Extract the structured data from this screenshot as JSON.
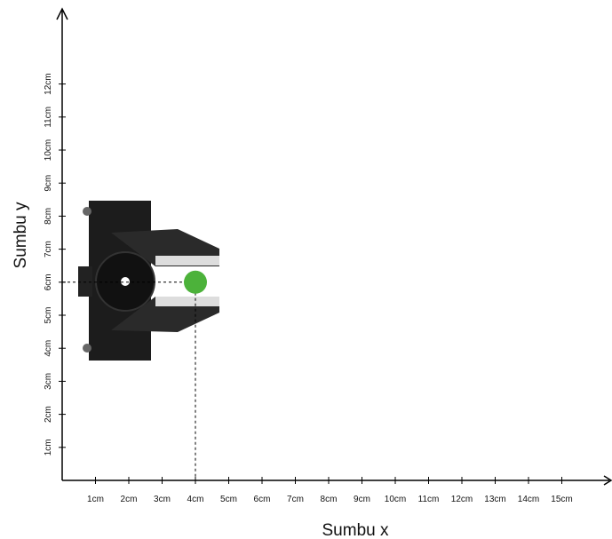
{
  "x_axis": {
    "label": "Sumbu x",
    "ticks": [
      "1cm",
      "2cm",
      "3cm",
      "4cm",
      "5cm",
      "6cm",
      "7cm",
      "8cm",
      "9cm",
      "10cm",
      "11cm",
      "12cm",
      "13cm",
      "14cm",
      "15cm"
    ]
  },
  "y_axis": {
    "label": "Sumbu y",
    "ticks": [
      "1cm",
      "2cm",
      "3cm",
      "4cm",
      "5cm",
      "6cm",
      "7cm",
      "8cm",
      "9cm",
      "10cm",
      "11cm",
      "12cm"
    ]
  },
  "target_point": {
    "x": 4,
    "y": 6
  }
}
